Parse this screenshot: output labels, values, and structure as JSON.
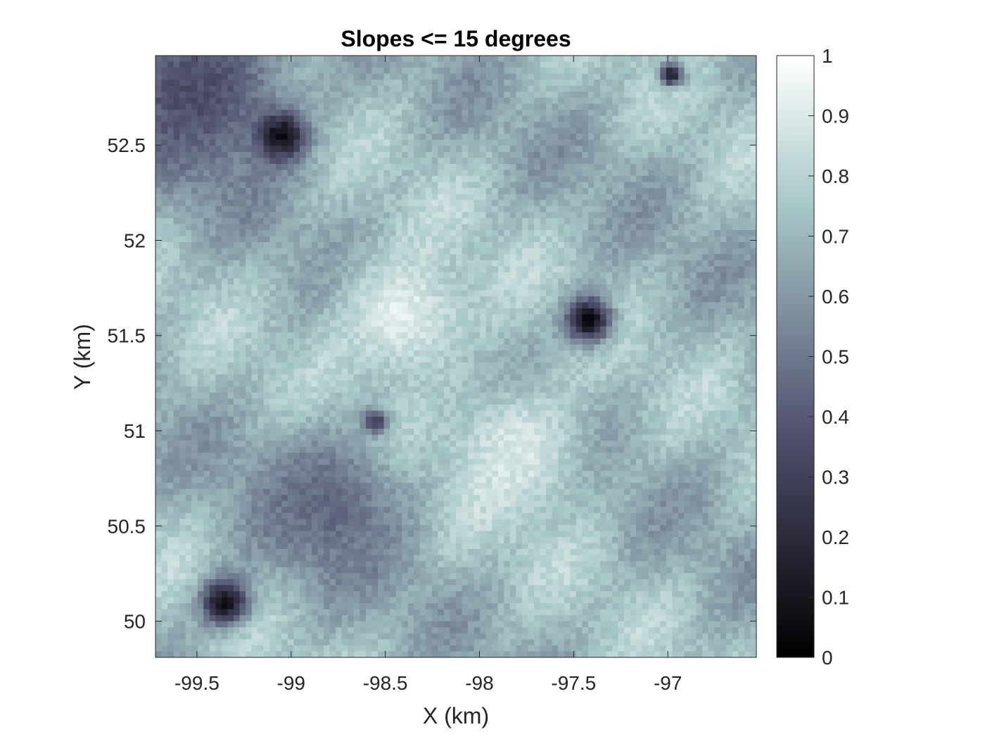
{
  "chart_data": {
    "type": "heatmap",
    "title": "Slopes <= 15 degrees",
    "xlabel": "X (km)",
    "ylabel": "Y (km)",
    "xlim": [
      -99.72,
      -96.53
    ],
    "ylim": [
      49.81,
      52.97
    ],
    "grid": false,
    "colormap": "bone",
    "colorbar": {
      "range": [
        0,
        1
      ],
      "ticks": [
        "0",
        "0.1",
        "0.2",
        "0.3",
        "0.4",
        "0.5",
        "0.6",
        "0.7",
        "0.8",
        "0.9",
        "1"
      ]
    },
    "x_ticks": [
      "-99.5",
      "-99",
      "-98.5",
      "-98",
      "-97.5",
      "-97"
    ],
    "y_ticks": [
      "50",
      "50.5",
      "51",
      "51.5",
      "52",
      "52.5"
    ],
    "grid_size": [
      100,
      100
    ],
    "features": [
      {
        "kind": "dark-region",
        "x": -99.5,
        "y": 52.8,
        "value": 0.35
      },
      {
        "kind": "crater",
        "x": -99.05,
        "y": 52.55,
        "value": 0.05
      },
      {
        "kind": "crater",
        "x": -97.42,
        "y": 51.58,
        "value": 0.05
      },
      {
        "kind": "crater",
        "x": -99.35,
        "y": 50.1,
        "value": 0.05
      },
      {
        "kind": "pit",
        "x": -96.98,
        "y": 52.87,
        "value": 0.15
      },
      {
        "kind": "pit",
        "x": -98.55,
        "y": 51.05,
        "value": 0.2
      },
      {
        "kind": "bright-ridge",
        "x": -98.4,
        "y": 51.6,
        "value": 0.92
      },
      {
        "kind": "bright-ridge",
        "x": -97.8,
        "y": 50.9,
        "value": 0.9
      },
      {
        "kind": "dark-band",
        "x": -98.8,
        "y": 50.6,
        "value": 0.45
      }
    ]
  }
}
